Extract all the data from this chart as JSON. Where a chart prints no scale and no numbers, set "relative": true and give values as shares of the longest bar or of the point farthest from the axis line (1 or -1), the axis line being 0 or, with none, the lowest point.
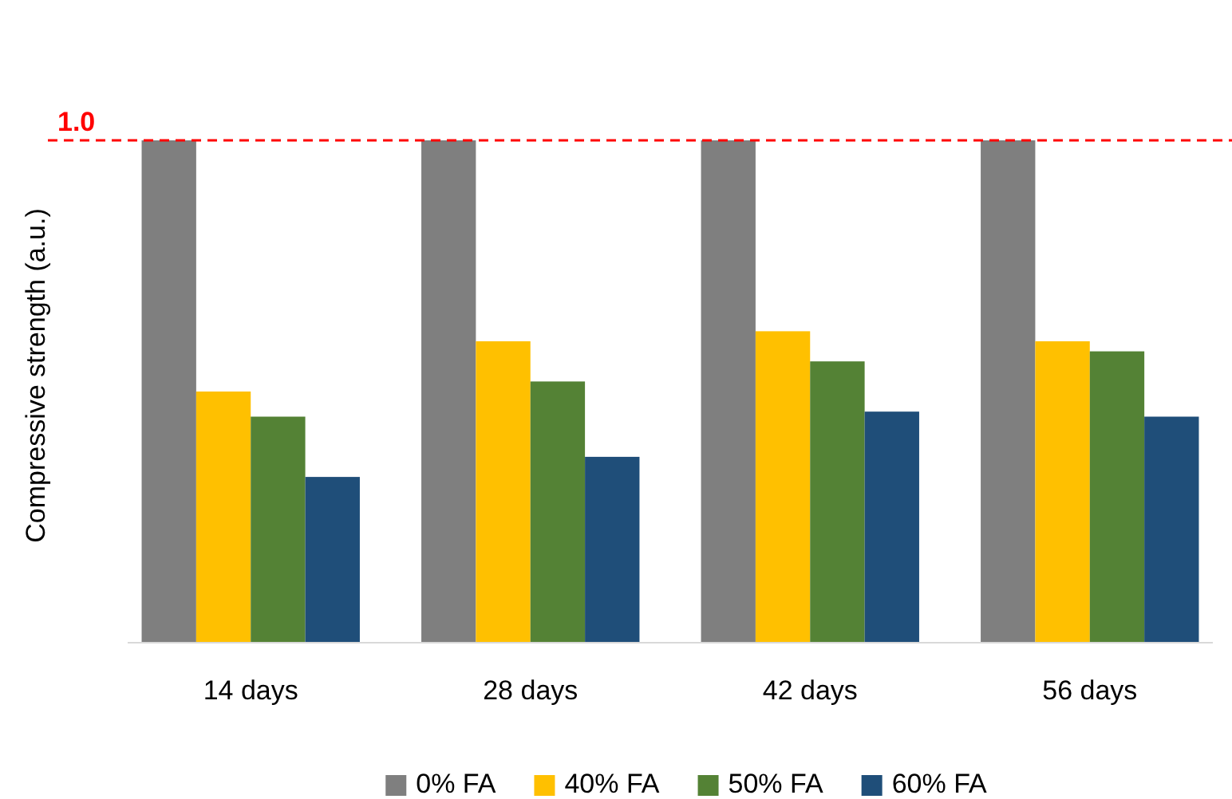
{
  "chart_data": {
    "type": "bar",
    "ylabel": "Compressive strength (a.u.)",
    "relative": true,
    "categories": [
      "14 days",
      "28 days",
      "42 days",
      "56 days"
    ],
    "series": [
      {
        "name": "0% FA",
        "color": "#7f7f7f",
        "values": [
          1,
          1,
          1,
          1
        ]
      },
      {
        "name": "40% FA",
        "color": "#ffc000",
        "values": [
          0.5,
          0.6,
          0.62,
          0.6
        ]
      },
      {
        "name": "50% FA",
        "color": "#548235",
        "values": [
          0.45,
          0.52,
          0.56,
          0.58
        ]
      },
      {
        "name": "60% FA",
        "color": "#1f4e79",
        "values": [
          0.33,
          0.37,
          0.46,
          0.45
        ]
      }
    ],
    "ref_lines": [
      {
        "axis": "y",
        "value": 1,
        "label": "1.0",
        "color": "#ff0000",
        "line_style": "dashed"
      }
    ],
    "legend": "bottom"
  }
}
